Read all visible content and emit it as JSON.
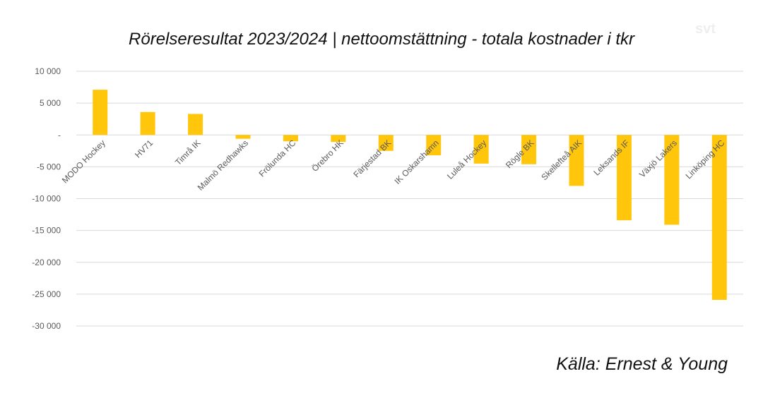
{
  "header": {
    "title": "Rörelseresultat 2023/2024 | nettoomstättning - totala kostnader i tkr",
    "logo_text": "svt"
  },
  "footer": {
    "source": "Källa: Ernest & Young"
  },
  "colors": {
    "bar": "#FFC60B",
    "grid": "#D9D9D9",
    "tick_text": "#595959"
  },
  "chart_data": {
    "type": "bar",
    "title": "Rörelseresultat 2023/2024 | nettoomstättning - totala kostnader i tkr",
    "categories": [
      "MODO Hockey",
      "HV71",
      "Timrå IK",
      "Malmö Redhawks",
      "Frölunda HC",
      "Örebro HK",
      "Färjestad BK",
      "IK Oskarshamn",
      "Luleå Hockey",
      "Rögle BK",
      "Skellefteå AIK",
      "Leksands IF",
      "Växjö Lakers",
      "Linköping HC"
    ],
    "values": [
      7100,
      3600,
      3300,
      -600,
      -1000,
      -1100,
      -2500,
      -3200,
      -4500,
      -4600,
      -8000,
      -13400,
      -14100,
      -25900
    ],
    "ylim": [
      -30000,
      10000
    ],
    "yticks": [
      10000,
      5000,
      0,
      -5000,
      -10000,
      -15000,
      -20000,
      -25000,
      -30000
    ],
    "ytick_labels": [
      "10 000",
      "5 000",
      "-",
      "-5 000",
      "-10 000",
      "-15 000",
      "-20 000",
      "-25 000",
      "-30 000"
    ],
    "xlabel": "",
    "ylabel": "",
    "grid": true,
    "legend": "none"
  }
}
